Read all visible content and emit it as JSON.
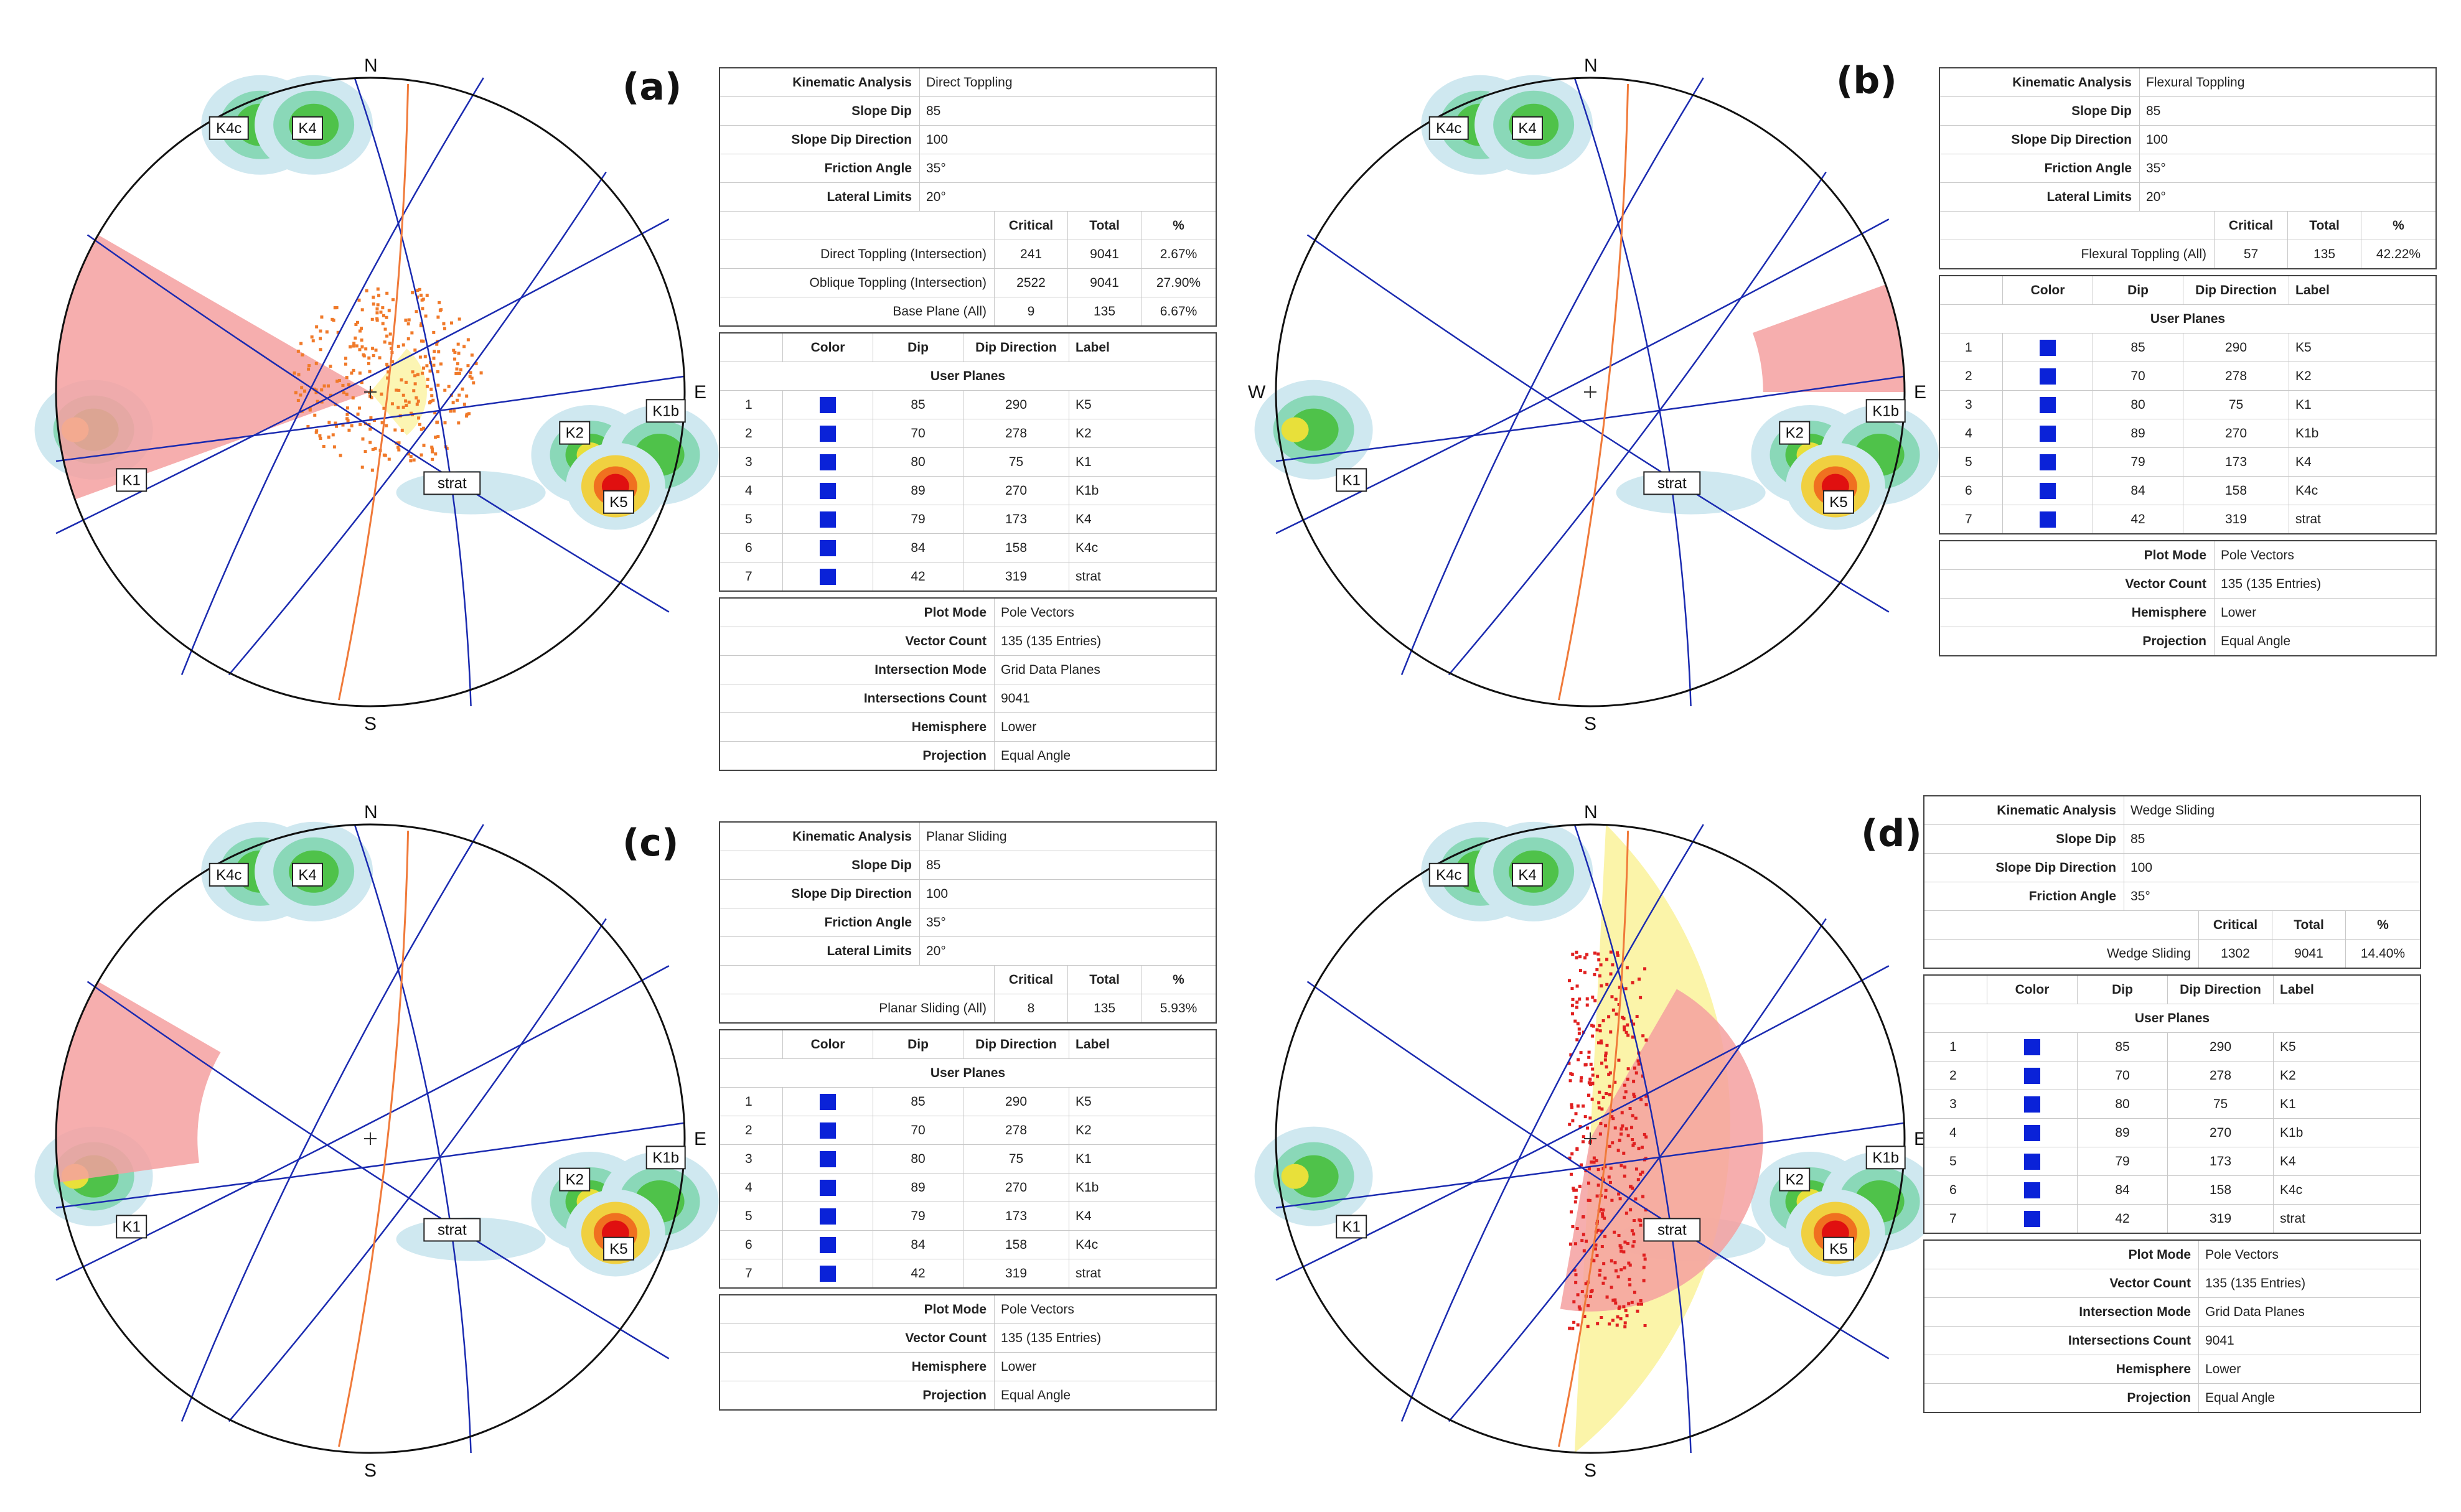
{
  "panels": [
    {
      "label": "(a)",
      "north": "N",
      "south": "S",
      "east": "E",
      "west": "",
      "ka": {
        "Kinematic Analysis": "Direct Toppling",
        "Slope Dip": "85",
        "Slope Dip Direction": "100",
        "Friction Angle": "35°",
        "Lateral Limits": "20°"
      },
      "crit_rows": [
        [
          "Direct Toppling (Intersection)",
          "241",
          "9041",
          "2.67%"
        ],
        [
          "Oblique Toppling (Intersection)",
          "2522",
          "9041",
          "27.90%"
        ],
        [
          "Base Plane (All)",
          "9",
          "135",
          "6.67%"
        ]
      ],
      "info": [
        [
          "Plot Mode",
          "Pole Vectors"
        ],
        [
          "Vector Count",
          "135 (135 Entries)"
        ],
        [
          "Intersection Mode",
          "Grid Data Planes"
        ],
        [
          "Intersections Count",
          "9041"
        ],
        [
          "Hemisphere",
          "Lower"
        ],
        [
          "Projection",
          "Equal Angle"
        ]
      ]
    },
    {
      "label": "(b)",
      "north": "N",
      "south": "S",
      "east": "E",
      "west": "W",
      "ka": {
        "Kinematic Analysis": "Flexural Toppling",
        "Slope Dip": "85",
        "Slope Dip Direction": "100",
        "Friction Angle": "35°",
        "Lateral Limits": "20°"
      },
      "crit_rows": [
        [
          "Flexural Toppling (All)",
          "57",
          "135",
          "42.22%"
        ]
      ],
      "info": [
        [
          "Plot Mode",
          "Pole Vectors"
        ],
        [
          "Vector Count",
          "135 (135 Entries)"
        ],
        [
          "Hemisphere",
          "Lower"
        ],
        [
          "Projection",
          "Equal Angle"
        ]
      ]
    },
    {
      "label": "(c)",
      "north": "N",
      "south": "S",
      "east": "E",
      "west": "",
      "ka": {
        "Kinematic Analysis": "Planar Sliding",
        "Slope Dip": "85",
        "Slope Dip Direction": "100",
        "Friction Angle": "35°",
        "Lateral Limits": "20°"
      },
      "crit_rows": [
        [
          "Planar Sliding (All)",
          "8",
          "135",
          "5.93%"
        ]
      ],
      "info": [
        [
          "Plot Mode",
          "Pole Vectors"
        ],
        [
          "Vector Count",
          "135 (135 Entries)"
        ],
        [
          "Hemisphere",
          "Lower"
        ],
        [
          "Projection",
          "Equal Angle"
        ]
      ]
    },
    {
      "label": "(d)",
      "north": "N",
      "south": "S",
      "east": "E",
      "west": "",
      "ka": {
        "Kinematic Analysis": "Wedge Sliding",
        "Slope Dip": "85",
        "Slope Dip Direction": "100",
        "Friction Angle": "35°"
      },
      "crit_rows": [
        [
          "Wedge Sliding",
          "1302",
          "9041",
          "14.40%"
        ]
      ],
      "info": [
        [
          "Plot Mode",
          "Pole Vectors"
        ],
        [
          "Vector Count",
          "135 (135 Entries)"
        ],
        [
          "Intersection Mode",
          "Grid Data Planes"
        ],
        [
          "Intersections Count",
          "9041"
        ],
        [
          "Hemisphere",
          "Lower"
        ],
        [
          "Projection",
          "Equal Angle"
        ]
      ]
    }
  ],
  "crit_headers": [
    "Critical",
    "Total",
    "%"
  ],
  "plane_headers": [
    "Color",
    "Dip",
    "Dip Direction",
    "Label"
  ],
  "user_planes_title": "User Planes",
  "planes": [
    [
      "1",
      "85",
      "290",
      "K5"
    ],
    [
      "2",
      "70",
      "278",
      "K2"
    ],
    [
      "3",
      "80",
      "75",
      "K1"
    ],
    [
      "4",
      "89",
      "270",
      "K1b"
    ],
    [
      "5",
      "79",
      "173",
      "K4"
    ],
    [
      "6",
      "84",
      "158",
      "K4c"
    ],
    [
      "7",
      "42",
      "319",
      "strat"
    ]
  ],
  "plane_color": "#0a22d8",
  "net_tags": [
    "K4c",
    "K4",
    "K2",
    "K1b",
    "K1",
    "K5",
    "strat"
  ],
  "colors": {
    "great_circle": "#1a2ab0",
    "slope": "#f07a3a",
    "crit_zone": "#f4a0a0",
    "lat_zone": "#fbf3a0",
    "pole": "#e02020",
    "tick": "#333333"
  }
}
